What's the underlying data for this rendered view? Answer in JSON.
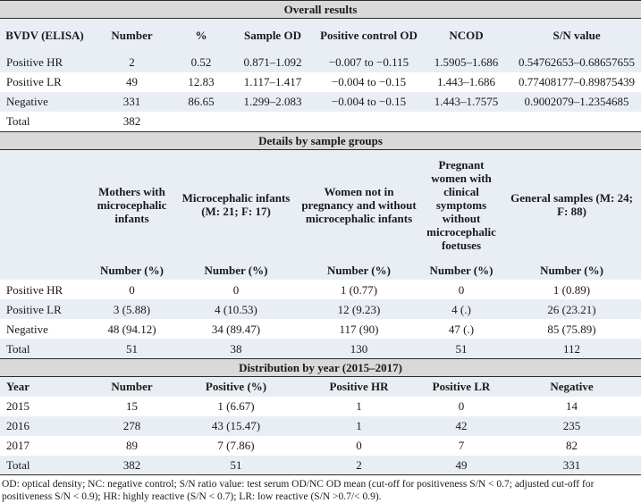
{
  "overall": {
    "title": "Overall results",
    "headers": [
      "BVDV (ELISA)",
      "Number",
      "%",
      "Sample OD",
      "Positive control OD",
      "NCOD",
      "S/N value"
    ],
    "rows": [
      [
        "Positive HR",
        "2",
        "0.52",
        "0.871–1.092",
        "−0.007 to −0.115",
        "1.5905–1.686",
        "0.54762653–0.68657655"
      ],
      [
        "Positive LR",
        "49",
        "12.83",
        "1.117–1.417",
        "−0.004 to −0.15",
        "1.443–1.686",
        "0.77408177–0.89875439"
      ],
      [
        "Negative",
        "331",
        "86.65",
        "1.299–2.083",
        "−0.004 to −0.15",
        "1.443–1.7575",
        "0.9002079–1.2354685"
      ],
      [
        "Total",
        "382",
        "",
        "",
        "",
        "",
        ""
      ]
    ]
  },
  "groups": {
    "title": "Details by sample groups",
    "headers": [
      "",
      "Mothers with microcephalic infants",
      "Microcephalic infants (M: 21; F: 17)",
      "Women not in pregnancy and without microcephalic infants",
      "Pregnant women with clinical symptoms without microcephalic foetuses",
      "General samples (M: 24; F: 88)"
    ],
    "subheaders": [
      "",
      "Number (%)",
      "Number (%)",
      "Number (%)",
      "Number (%)",
      "Number (%)"
    ],
    "rows": [
      [
        "Positive HR",
        "0",
        "0",
        "1 (0.77)",
        "0",
        "1 (0.89)"
      ],
      [
        "Positive LR",
        "3 (5.88)",
        "4 (10.53)",
        "12 (9.23)",
        "4 (.)",
        "26 (23.21)"
      ],
      [
        "Negative",
        "48 (94.12)",
        "34 (89.47)",
        "117 (90)",
        "47 (.)",
        "85 (75.89)"
      ],
      [
        "Total",
        "51",
        "38",
        "130",
        "51",
        "112"
      ]
    ]
  },
  "years": {
    "title": "Distribution by year (2015–2017)",
    "headers": [
      "Year",
      "Number",
      "Positive (%)",
      "Positive HR",
      "Positive LR",
      "Negative"
    ],
    "rows": [
      [
        "2015",
        "15",
        "1 (6.67)",
        "1",
        "0",
        "14"
      ],
      [
        "2016",
        "278",
        "43 (15.47)",
        "1",
        "42",
        "235"
      ],
      [
        "2017",
        "89",
        "7 (7.86)",
        "0",
        "7",
        "82"
      ],
      [
        "Total",
        "382",
        "51",
        "2",
        "49",
        "331"
      ]
    ]
  },
  "footnote": "OD: optical density; NC: negative control; S/N ratio value: test serum OD/NC OD mean (cut-off for positiveness S/N < 0.7; adjusted cut-off for positiveness S/N < 0.9); HR: highly reactive (S/N < 0.7); LR: low reactive (S/N >0.7/< 0.9)."
}
